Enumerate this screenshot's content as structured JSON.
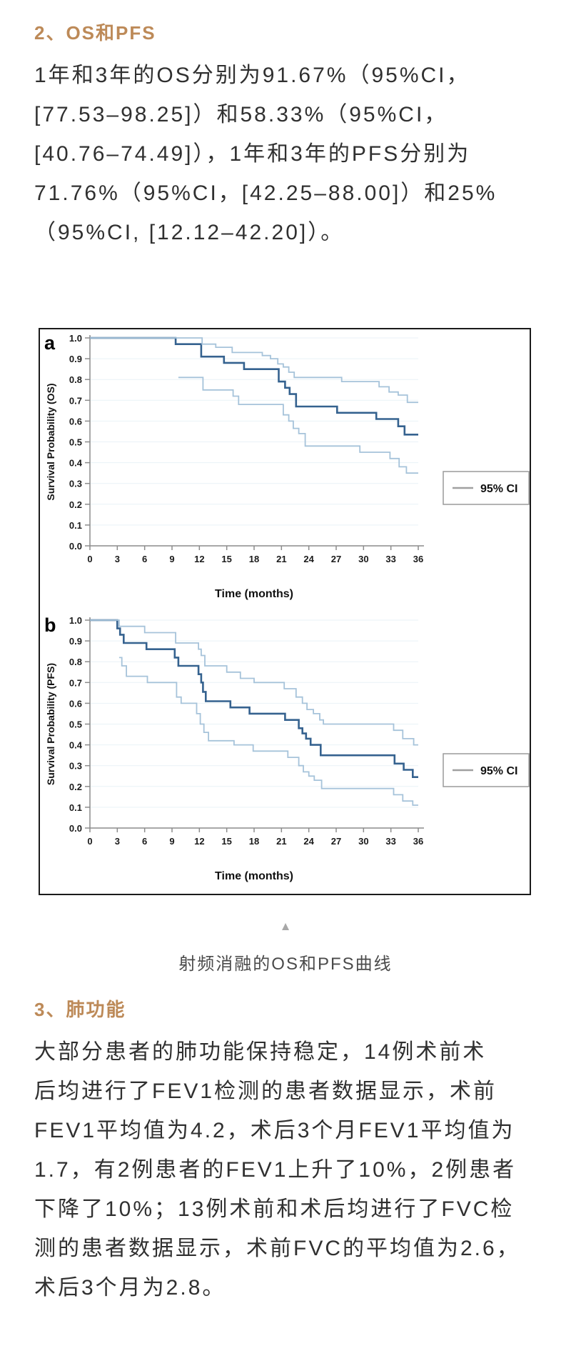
{
  "page": {
    "accent_color": "#bd8a58",
    "section2_heading": "2、OS和PFS",
    "paragraph_os_pfs": [
      "1年和3年的OS分别为91.67%（95%CI，",
      "[77.53–98.25]）和58.33%（95%CI，",
      "[40.76–74.49]），1年和3年的PFS分别为",
      "71.76%（95%CI，[42.25–88.00]）和25%",
      "（95%CI, [12.12–42.20]）。"
    ],
    "figure_caption": "射频消融的OS和PFS曲线",
    "caption_arrow": "▲",
    "section3_heading": "3、肺功能",
    "paragraph_lung": [
      "大部分患者的肺功能保持稳定，14例术前术",
      "后均进行了FEV1检测的患者数据显示，术前",
      "FEV1平均值为4.2，术后3个月FEV1平均值为",
      "1.7，有2例患者的FEV1上升了10%，2例患者",
      "下降了10%；13例术前和术后均进行了FVC检",
      "测的患者数据显示，术前FVC的平均值为2.6，",
      "术后3个月为2.8。"
    ]
  },
  "chart_data": [
    {
      "type": "line",
      "panel_label": "a",
      "xlabel": "Time (months)",
      "ylabel": "Survival Probability (OS)",
      "xlim": [
        0,
        36
      ],
      "ylim": [
        0,
        1
      ],
      "xticks": [
        0,
        3,
        6,
        9,
        12,
        15,
        18,
        21,
        24,
        27,
        30,
        33,
        36
      ],
      "yticks": [
        "0.0",
        "0.1",
        "0.2",
        "0.3",
        "0.4",
        "0.5",
        "0.6",
        "0.7",
        "0.8",
        "0.9",
        "1.0"
      ],
      "grid": "horizontal",
      "grid_color": "#e9f2f7",
      "axis_color": "#8c8c8c",
      "legend": {
        "label": "95% CI",
        "position": "right",
        "swatch_color": "#a0a0a0"
      },
      "step": true,
      "series": [
        {
          "name": "os-estimate",
          "color": "#35628f",
          "width": 2.6,
          "points": [
            [
              0,
              1.0
            ],
            [
              9.4,
              0.97
            ],
            [
              12.2,
              0.91
            ],
            [
              14.7,
              0.88
            ],
            [
              16.9,
              0.85
            ],
            [
              20.7,
              0.79
            ],
            [
              21.4,
              0.76
            ],
            [
              21.9,
              0.73
            ],
            [
              22.6,
              0.67
            ],
            [
              27.1,
              0.64
            ],
            [
              31.4,
              0.61
            ],
            [
              33.8,
              0.575
            ],
            [
              34.5,
              0.535
            ],
            [
              36,
              0.535
            ]
          ]
        },
        {
          "name": "ci-upper",
          "color": "#a6c3da",
          "width": 1.8,
          "points": [
            [
              0,
              1.0
            ],
            [
              12.3,
              0.97
            ],
            [
              13.8,
              0.955
            ],
            [
              15.6,
              0.93
            ],
            [
              18.9,
              0.915
            ],
            [
              19.8,
              0.9
            ],
            [
              20.6,
              0.875
            ],
            [
              21.2,
              0.86
            ],
            [
              21.8,
              0.835
            ],
            [
              22.4,
              0.81
            ],
            [
              27.6,
              0.79
            ],
            [
              31.7,
              0.765
            ],
            [
              32.8,
              0.74
            ],
            [
              33.8,
              0.725
            ],
            [
              34.8,
              0.69
            ],
            [
              36,
              0.69
            ]
          ]
        },
        {
          "name": "ci-lower",
          "color": "#a6c3da",
          "width": 1.8,
          "points": [
            [
              9.7,
              0.81
            ],
            [
              12.4,
              0.75
            ],
            [
              15.7,
              0.72
            ],
            [
              16.3,
              0.68
            ],
            [
              21.2,
              0.63
            ],
            [
              21.8,
              0.6
            ],
            [
              22.3,
              0.565
            ],
            [
              22.9,
              0.54
            ],
            [
              23.6,
              0.48
            ],
            [
              29.6,
              0.45
            ],
            [
              32.9,
              0.42
            ],
            [
              33.9,
              0.38
            ],
            [
              34.7,
              0.35
            ],
            [
              36,
              0.35
            ]
          ]
        }
      ]
    },
    {
      "type": "line",
      "panel_label": "b",
      "xlabel": "Time (months)",
      "ylabel": "Survival Probability (PFS)",
      "xlim": [
        0,
        36
      ],
      "ylim": [
        0,
        1
      ],
      "xticks": [
        0,
        3,
        6,
        9,
        12,
        15,
        18,
        21,
        24,
        27,
        30,
        33,
        36
      ],
      "yticks": [
        "0.0",
        "0.1",
        "0.2",
        "0.3",
        "0.4",
        "0.5",
        "0.6",
        "0.7",
        "0.8",
        "0.9",
        "1.0"
      ],
      "grid": "horizontal",
      "grid_color": "#e9f2f7",
      "axis_color": "#8c8c8c",
      "legend": {
        "label": "95% CI",
        "position": "right",
        "swatch_color": "#a0a0a0"
      },
      "step": true,
      "series": [
        {
          "name": "pfs-estimate",
          "color": "#35628f",
          "width": 2.6,
          "points": [
            [
              0,
              1.0
            ],
            [
              3.0,
              0.96
            ],
            [
              3.3,
              0.93
            ],
            [
              3.7,
              0.89
            ],
            [
              6.2,
              0.86
            ],
            [
              9.3,
              0.82
            ],
            [
              9.7,
              0.78
            ],
            [
              11.9,
              0.74
            ],
            [
              12.2,
              0.7
            ],
            [
              12.4,
              0.655
            ],
            [
              12.7,
              0.61
            ],
            [
              15.4,
              0.58
            ],
            [
              17.5,
              0.55
            ],
            [
              21.4,
              0.52
            ],
            [
              22.9,
              0.48
            ],
            [
              23.3,
              0.455
            ],
            [
              23.7,
              0.43
            ],
            [
              24.2,
              0.4
            ],
            [
              25.3,
              0.35
            ],
            [
              33.4,
              0.31
            ],
            [
              34.4,
              0.28
            ],
            [
              35.4,
              0.245
            ],
            [
              36,
              0.245
            ]
          ]
        },
        {
          "name": "ci-upper",
          "color": "#a6c3da",
          "width": 1.8,
          "points": [
            [
              0,
              1.0
            ],
            [
              3.2,
              0.97
            ],
            [
              6.0,
              0.94
            ],
            [
              9.4,
              0.89
            ],
            [
              11.9,
              0.86
            ],
            [
              12.2,
              0.83
            ],
            [
              12.6,
              0.78
            ],
            [
              15.0,
              0.75
            ],
            [
              16.5,
              0.72
            ],
            [
              18.0,
              0.7
            ],
            [
              21.3,
              0.67
            ],
            [
              22.6,
              0.63
            ],
            [
              23.3,
              0.6
            ],
            [
              23.8,
              0.57
            ],
            [
              24.5,
              0.55
            ],
            [
              25.2,
              0.52
            ],
            [
              25.6,
              0.5
            ],
            [
              33.3,
              0.47
            ],
            [
              34.3,
              0.43
            ],
            [
              35.5,
              0.4
            ],
            [
              36,
              0.4
            ]
          ]
        },
        {
          "name": "ci-lower",
          "color": "#a6c3da",
          "width": 1.8,
          "points": [
            [
              3.2,
              0.82
            ],
            [
              3.5,
              0.78
            ],
            [
              4.0,
              0.73
            ],
            [
              6.3,
              0.7
            ],
            [
              9.5,
              0.63
            ],
            [
              10.0,
              0.6
            ],
            [
              11.7,
              0.55
            ],
            [
              12.1,
              0.5
            ],
            [
              12.5,
              0.46
            ],
            [
              13.0,
              0.42
            ],
            [
              15.8,
              0.4
            ],
            [
              17.9,
              0.37
            ],
            [
              21.7,
              0.34
            ],
            [
              22.9,
              0.3
            ],
            [
              23.4,
              0.27
            ],
            [
              24.0,
              0.25
            ],
            [
              24.6,
              0.23
            ],
            [
              25.4,
              0.19
            ],
            [
              33.3,
              0.16
            ],
            [
              34.3,
              0.13
            ],
            [
              35.4,
              0.11
            ],
            [
              36,
              0.11
            ]
          ]
        }
      ]
    }
  ]
}
